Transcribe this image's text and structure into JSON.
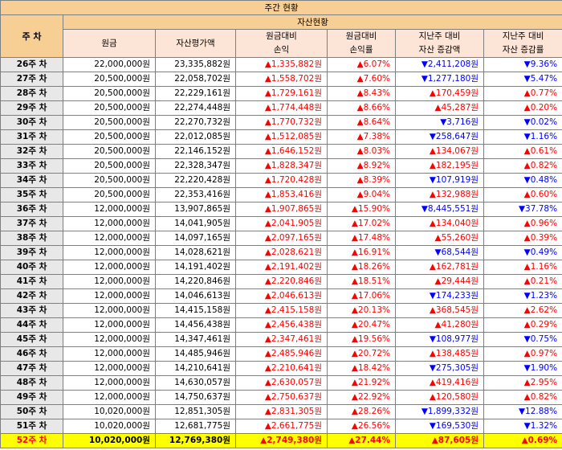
{
  "title": "주간 현황",
  "week_header": "주 차",
  "group_header": "자산현황",
  "columns": {
    "principal": "원금",
    "asset_value": "자산평가액",
    "pl_1": "원금대비",
    "pl_2": "손익",
    "rate_1": "원금대비",
    "rate_2": "손익률",
    "chg_1": "지난주 대비",
    "chg_2": "자산 증감액",
    "chgrate_1": "지난주 대비",
    "chgrate_2": "자산 증감률"
  },
  "rows": [
    {
      "week": "26주 차",
      "principal": "22,000,000원",
      "value": "23,335,882원",
      "pl": "▲1,335,882원",
      "rate": "▲6.07%",
      "chg": "▼2,411,208원",
      "chg_dir": "down",
      "chgrate": "▼9.36%",
      "chgrate_dir": "down"
    },
    {
      "week": "27주 차",
      "principal": "20,500,000원",
      "value": "22,058,702원",
      "pl": "▲1,558,702원",
      "rate": "▲7.60%",
      "chg": "▼1,277,180원",
      "chg_dir": "down",
      "chgrate": "▼5.47%",
      "chgrate_dir": "down"
    },
    {
      "week": "28주 차",
      "principal": "20,500,000원",
      "value": "22,229,161원",
      "pl": "▲1,729,161원",
      "rate": "▲8.43%",
      "chg": "▲170,459원",
      "chg_dir": "up",
      "chgrate": "▲0.77%",
      "chgrate_dir": "up"
    },
    {
      "week": "29주 차",
      "principal": "20,500,000원",
      "value": "22,274,448원",
      "pl": "▲1,774,448원",
      "rate": "▲8.66%",
      "chg": "▲45,287원",
      "chg_dir": "up",
      "chgrate": "▲0.20%",
      "chgrate_dir": "up"
    },
    {
      "week": "30주 차",
      "principal": "20,500,000원",
      "value": "22,270,732원",
      "pl": "▲1,770,732원",
      "rate": "▲8.64%",
      "chg": "▼3,716원",
      "chg_dir": "down",
      "chgrate": "▼0.02%",
      "chgrate_dir": "down"
    },
    {
      "week": "31주 차",
      "principal": "20,500,000원",
      "value": "22,012,085원",
      "pl": "▲1,512,085원",
      "rate": "▲7.38%",
      "chg": "▼258,647원",
      "chg_dir": "down",
      "chgrate": "▼1.16%",
      "chgrate_dir": "down"
    },
    {
      "week": "32주 차",
      "principal": "20,500,000원",
      "value": "22,146,152원",
      "pl": "▲1,646,152원",
      "rate": "▲8.03%",
      "chg": "▲134,067원",
      "chg_dir": "up",
      "chgrate": "▲0.61%",
      "chgrate_dir": "up"
    },
    {
      "week": "33주 차",
      "principal": "20,500,000원",
      "value": "22,328,347원",
      "pl": "▲1,828,347원",
      "rate": "▲8.92%",
      "chg": "▲182,195원",
      "chg_dir": "up",
      "chgrate": "▲0.82%",
      "chgrate_dir": "up"
    },
    {
      "week": "34주 차",
      "principal": "20,500,000원",
      "value": "22,220,428원",
      "pl": "▲1,720,428원",
      "rate": "▲8.39%",
      "chg": "▼107,919원",
      "chg_dir": "down",
      "chgrate": "▼0.48%",
      "chgrate_dir": "down"
    },
    {
      "week": "35주 차",
      "principal": "20,500,000원",
      "value": "22,353,416원",
      "pl": "▲1,853,416원",
      "rate": "▲9.04%",
      "chg": "▲132,988원",
      "chg_dir": "up",
      "chgrate": "▲0.60%",
      "chgrate_dir": "up"
    },
    {
      "week": "36주 차",
      "principal": "12,000,000원",
      "value": "13,907,865원",
      "pl": "▲1,907,865원",
      "rate": "▲15.90%",
      "chg": "▼8,445,551원",
      "chg_dir": "down",
      "chgrate": "▼37.78%",
      "chgrate_dir": "down"
    },
    {
      "week": "37주 차",
      "principal": "12,000,000원",
      "value": "14,041,905원",
      "pl": "▲2,041,905원",
      "rate": "▲17.02%",
      "chg": "▲134,040원",
      "chg_dir": "up",
      "chgrate": "▲0.96%",
      "chgrate_dir": "up"
    },
    {
      "week": "38주 차",
      "principal": "12,000,000원",
      "value": "14,097,165원",
      "pl": "▲2,097,165원",
      "rate": "▲17.48%",
      "chg": "▲55,260원",
      "chg_dir": "up",
      "chgrate": "▲0.39%",
      "chgrate_dir": "up"
    },
    {
      "week": "39주 차",
      "principal": "12,000,000원",
      "value": "14,028,621원",
      "pl": "▲2,028,621원",
      "rate": "▲16.91%",
      "chg": "▼68,544원",
      "chg_dir": "down",
      "chgrate": "▼0.49%",
      "chgrate_dir": "down"
    },
    {
      "week": "40주 차",
      "principal": "12,000,000원",
      "value": "14,191,402원",
      "pl": "▲2,191,402원",
      "rate": "▲18.26%",
      "chg": "▲162,781원",
      "chg_dir": "up",
      "chgrate": "▲1.16%",
      "chgrate_dir": "up"
    },
    {
      "week": "41주 차",
      "principal": "12,000,000원",
      "value": "14,220,846원",
      "pl": "▲2,220,846원",
      "rate": "▲18.51%",
      "chg": "▲29,444원",
      "chg_dir": "up",
      "chgrate": "▲0.21%",
      "chgrate_dir": "up"
    },
    {
      "week": "42주 차",
      "principal": "12,000,000원",
      "value": "14,046,613원",
      "pl": "▲2,046,613원",
      "rate": "▲17.06%",
      "chg": "▼174,233원",
      "chg_dir": "down",
      "chgrate": "▼1.23%",
      "chgrate_dir": "down"
    },
    {
      "week": "43주 차",
      "principal": "12,000,000원",
      "value": "14,415,158원",
      "pl": "▲2,415,158원",
      "rate": "▲20.13%",
      "chg": "▲368,545원",
      "chg_dir": "up",
      "chgrate": "▲2.62%",
      "chgrate_dir": "up"
    },
    {
      "week": "44주 차",
      "principal": "12,000,000원",
      "value": "14,456,438원",
      "pl": "▲2,456,438원",
      "rate": "▲20.47%",
      "chg": "▲41,280원",
      "chg_dir": "up",
      "chgrate": "▲0.29%",
      "chgrate_dir": "up"
    },
    {
      "week": "45주 차",
      "principal": "12,000,000원",
      "value": "14,347,461원",
      "pl": "▲2,347,461원",
      "rate": "▲19.56%",
      "chg": "▼108,977원",
      "chg_dir": "down",
      "chgrate": "▼0.75%",
      "chgrate_dir": "down"
    },
    {
      "week": "46주 차",
      "principal": "12,000,000원",
      "value": "14,485,946원",
      "pl": "▲2,485,946원",
      "rate": "▲20.72%",
      "chg": "▲138,485원",
      "chg_dir": "up",
      "chgrate": "▲0.97%",
      "chgrate_dir": "up"
    },
    {
      "week": "47주 차",
      "principal": "12,000,000원",
      "value": "14,210,641원",
      "pl": "▲2,210,641원",
      "rate": "▲18.42%",
      "chg": "▼275,305원",
      "chg_dir": "down",
      "chgrate": "▼1.90%",
      "chgrate_dir": "down"
    },
    {
      "week": "48주 차",
      "principal": "12,000,000원",
      "value": "14,630,057원",
      "pl": "▲2,630,057원",
      "rate": "▲21.92%",
      "chg": "▲419,416원",
      "chg_dir": "up",
      "chgrate": "▲2.95%",
      "chgrate_dir": "up"
    },
    {
      "week": "49주 차",
      "principal": "12,000,000원",
      "value": "14,750,637원",
      "pl": "▲2,750,637원",
      "rate": "▲22.92%",
      "chg": "▲120,580원",
      "chg_dir": "up",
      "chgrate": "▲0.82%",
      "chgrate_dir": "up"
    },
    {
      "week": "50주 차",
      "principal": "10,020,000원",
      "value": "12,851,305원",
      "pl": "▲2,831,305원",
      "rate": "▲28.26%",
      "chg": "▼1,899,332원",
      "chg_dir": "down",
      "chgrate": "▼12.88%",
      "chgrate_dir": "down"
    },
    {
      "week": "51주 차",
      "principal": "10,020,000원",
      "value": "12,681,775원",
      "pl": "▲2,661,775원",
      "rate": "▲26.56%",
      "chg": "▼169,530원",
      "chg_dir": "down",
      "chgrate": "▼1.32%",
      "chgrate_dir": "down"
    },
    {
      "week": "52주 차",
      "principal": "10,020,000원",
      "value": "12,769,380원",
      "pl": "▲2,749,380원",
      "rate": "▲27.44%",
      "chg": "▲87,605원",
      "chg_dir": "up",
      "chgrate": "▲0.69%",
      "chgrate_dir": "up",
      "highlight": true
    }
  ],
  "colors": {
    "header": "#f7cf95",
    "subheader": "#fce4d6",
    "week_cell": "#e8e8e8",
    "highlight": "#ffff00",
    "up": "#ff0000",
    "down": "#0000ff"
  }
}
